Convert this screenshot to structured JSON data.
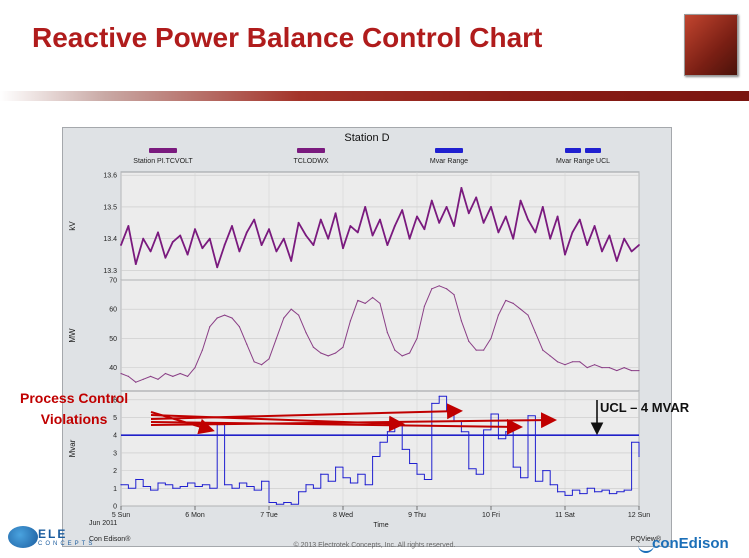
{
  "slide": {
    "title": "Reactive Power Balance Control Chart",
    "callout": [
      "Process Control",
      "Violations"
    ],
    "ucl_label": "UCL – 4 MVAR",
    "footer": {
      "brand": "ELE",
      "brand_sub": "CONCEPTS",
      "copyright": "© 2013 Electrotek Concepts, Inc. All rights reserved.",
      "right_logo": "conEdison"
    },
    "colors": {
      "title": "#b01c1c",
      "kv_series": "#7a1a7e",
      "mw_series": "#8a3f86",
      "mvar_series": "#2020d0",
      "ucl": "#2020c8",
      "arrow": "#c00000",
      "plot_bg": "#ececec",
      "frame_bg": "#dfe2e5"
    }
  },
  "chart_data": {
    "type": "line",
    "title": "Station D",
    "legend": [
      {
        "name": "Station PI.TCVOLT",
        "color": "#7a1a7e"
      },
      {
        "name": "TCLODWX",
        "color": "#7a1a7e"
      },
      {
        "name": "Mvar Range",
        "color": "#2020d0"
      },
      {
        "name": "Mvar Range UCL",
        "color": "#2020d0"
      }
    ],
    "x_ticks": [
      "5 Sun",
      "6 Mon",
      "7 Tue",
      "8 Wed",
      "9 Thu",
      "10 Fri",
      "11 Sat",
      "12 Sun"
    ],
    "x_sublabel": "Jun 2011",
    "xlabel": "Time",
    "x_range": [
      0,
      7
    ],
    "watermark": "PQView®",
    "owner": "Con Edison®",
    "panels": [
      {
        "ylabel": "kV",
        "ylim": [
          13.27,
          13.61
        ],
        "yticks": [
          "13.3",
          "13.4",
          "13.5",
          "13.6"
        ],
        "ytick_values": [
          13.3,
          13.4,
          13.5,
          13.6
        ],
        "series": [
          {
            "name": "Station PI.TCVOLT",
            "x": [
              0.0,
              0.1,
              0.2,
              0.3,
              0.4,
              0.5,
              0.6,
              0.7,
              0.8,
              0.9,
              1.0,
              1.1,
              1.2,
              1.3,
              1.4,
              1.5,
              1.6,
              1.7,
              1.8,
              1.9,
              2.0,
              2.1,
              2.2,
              2.3,
              2.4,
              2.5,
              2.6,
              2.7,
              2.8,
              2.9,
              3.0,
              3.1,
              3.2,
              3.3,
              3.4,
              3.5,
              3.6,
              3.7,
              3.8,
              3.9,
              4.0,
              4.1,
              4.2,
              4.3,
              4.4,
              4.5,
              4.6,
              4.7,
              4.8,
              4.9,
              5.0,
              5.1,
              5.2,
              5.3,
              5.4,
              5.5,
              5.6,
              5.7,
              5.8,
              5.9,
              6.0,
              6.1,
              6.2,
              6.3,
              6.4,
              6.5,
              6.6,
              6.7,
              6.8,
              6.9,
              7.0
            ],
            "y": [
              13.38,
              13.44,
              13.32,
              13.4,
              13.36,
              13.42,
              13.34,
              13.39,
              13.41,
              13.35,
              13.43,
              13.37,
              13.4,
              13.31,
              13.38,
              13.44,
              13.36,
              13.42,
              13.46,
              13.38,
              13.43,
              13.36,
              13.4,
              13.33,
              13.45,
              13.41,
              13.38,
              13.46,
              13.4,
              13.48,
              13.37,
              13.44,
              13.42,
              13.5,
              13.41,
              13.46,
              13.38,
              13.44,
              13.49,
              13.4,
              13.47,
              13.43,
              13.52,
              13.45,
              13.5,
              13.44,
              13.56,
              13.48,
              13.53,
              13.45,
              13.5,
              13.42,
              13.47,
              13.4,
              13.52,
              13.46,
              13.42,
              13.5,
              13.4,
              13.47,
              13.35,
              13.42,
              13.46,
              13.38,
              13.44,
              13.36,
              13.41,
              13.33,
              13.4,
              13.36,
              13.38
            ]
          }
        ]
      },
      {
        "ylabel": "MW",
        "ylim": [
          32,
          70
        ],
        "yticks": [
          "40",
          "50",
          "60",
          "70"
        ],
        "ytick_values": [
          40,
          50,
          60,
          70
        ],
        "series": [
          {
            "name": "TCLODWX",
            "x": [
              0.0,
              0.1,
              0.2,
              0.3,
              0.4,
              0.5,
              0.6,
              0.7,
              0.8,
              0.9,
              1.0,
              1.1,
              1.2,
              1.3,
              1.4,
              1.5,
              1.6,
              1.7,
              1.8,
              1.9,
              2.0,
              2.1,
              2.2,
              2.3,
              2.4,
              2.5,
              2.6,
              2.7,
              2.8,
              2.9,
              3.0,
              3.1,
              3.2,
              3.3,
              3.4,
              3.5,
              3.6,
              3.7,
              3.8,
              3.9,
              4.0,
              4.1,
              4.2,
              4.3,
              4.4,
              4.5,
              4.6,
              4.7,
              4.8,
              4.9,
              5.0,
              5.1,
              5.2,
              5.3,
              5.4,
              5.5,
              5.6,
              5.7,
              5.8,
              5.9,
              6.0,
              6.1,
              6.2,
              6.3,
              6.4,
              6.5,
              6.6,
              6.7,
              6.8,
              6.9,
              7.0
            ],
            "y": [
              38,
              37,
              35,
              36,
              37,
              36,
              38,
              37,
              38,
              37,
              40,
              46,
              54,
              57,
              58,
              57,
              54,
              48,
              42,
              41,
              43,
              50,
              57,
              60,
              58,
              52,
              47,
              45,
              44,
              45,
              47,
              56,
              63,
              62,
              64,
              62,
              52,
              46,
              44,
              45,
              50,
              61,
              67,
              68,
              67,
              65,
              56,
              49,
              46,
              46,
              50,
              58,
              63,
              62,
              60,
              58,
              52,
              46,
              44,
              42,
              41,
              42,
              42,
              40,
              41,
              40,
              40,
              39,
              40,
              39,
              39
            ]
          }
        ]
      },
      {
        "ylabel": "Mvar",
        "ylim": [
          0,
          6.5
        ],
        "yticks": [
          "0",
          "1",
          "2",
          "3",
          "4",
          "5",
          "6"
        ],
        "ytick_values": [
          0,
          1,
          2,
          3,
          4,
          5,
          6
        ],
        "ucl": 4,
        "series": [
          {
            "name": "Mvar Range",
            "x": [
              0.0,
              0.1,
              0.2,
              0.3,
              0.4,
              0.5,
              0.6,
              0.7,
              0.8,
              0.9,
              1.0,
              1.1,
              1.2,
              1.3,
              1.4,
              1.5,
              1.6,
              1.7,
              1.8,
              1.9,
              2.0,
              2.1,
              2.2,
              2.3,
              2.4,
              2.5,
              2.6,
              2.7,
              2.8,
              2.9,
              3.0,
              3.1,
              3.2,
              3.3,
              3.4,
              3.5,
              3.6,
              3.7,
              3.8,
              3.9,
              4.0,
              4.1,
              4.2,
              4.3,
              4.4,
              4.5,
              4.6,
              4.7,
              4.8,
              4.9,
              5.0,
              5.1,
              5.2,
              5.3,
              5.4,
              5.5,
              5.6,
              5.7,
              5.8,
              5.9,
              6.0,
              6.1,
              6.2,
              6.3,
              6.4,
              6.5,
              6.6,
              6.7,
              6.8,
              6.9,
              7.0
            ],
            "y": [
              1.2,
              1.0,
              1.5,
              1.1,
              0.9,
              1.3,
              1.2,
              1.0,
              1.1,
              1.3,
              1.1,
              1.2,
              1.0,
              4.6,
              1.2,
              1.0,
              1.3,
              1.1,
              0.9,
              1.4,
              0.2,
              0.1,
              0.2,
              0.1,
              0.8,
              1.2,
              1.0,
              1.8,
              1.4,
              2.2,
              1.6,
              1.3,
              1.8,
              1.2,
              2.8,
              3.6,
              4.2,
              4.6,
              3.2,
              2.4,
              1.8,
              1.5,
              5.8,
              6.2,
              5.4,
              4.8,
              4.2,
              2.1,
              1.8,
              4.3,
              5.2,
              3.8,
              4.2,
              2.2,
              1.6,
              5.1,
              1.4,
              2.0,
              1.2,
              0.8,
              0.6,
              0.9,
              0.7,
              1.0,
              0.8,
              0.9,
              0.7,
              0.8,
              0.9,
              3.6,
              2.8
            ]
          }
        ]
      }
    ]
  }
}
